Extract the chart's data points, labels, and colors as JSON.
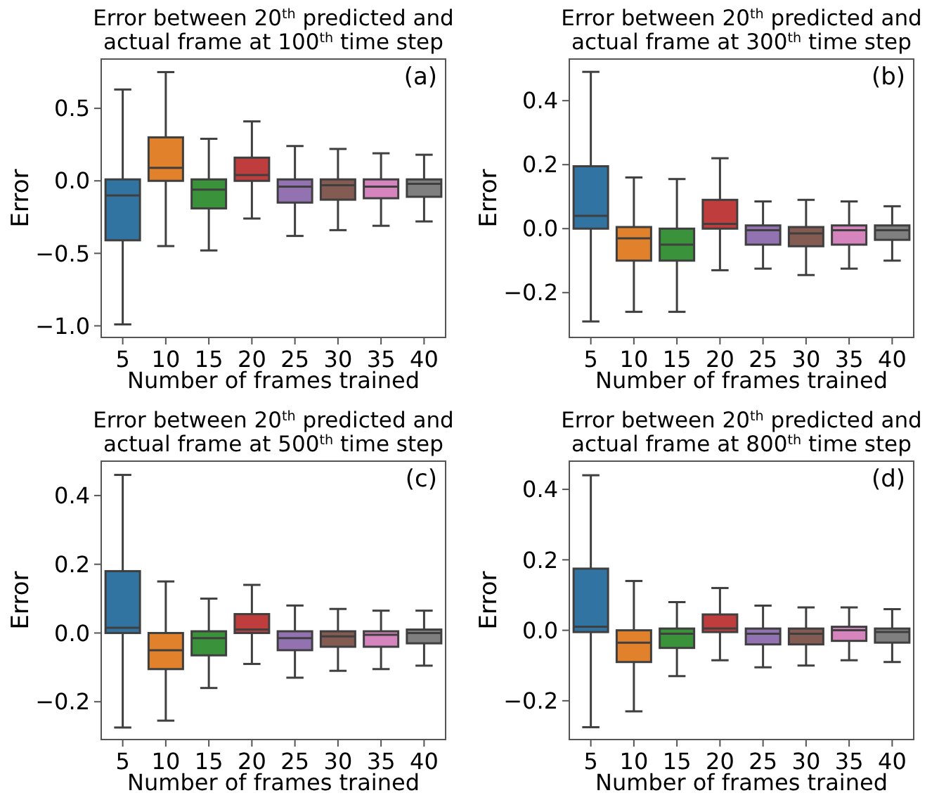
{
  "chart_data": [
    {
      "type": "box",
      "title": "Error between 20$^{th}$ predicted and\nactual frame at 100$^{th}$ time step",
      "xlabel": "Number of frames trained",
      "ylabel": "Error",
      "annotations": [
        "(a)"
      ],
      "categories": [
        "5",
        "10",
        "15",
        "20",
        "25",
        "30",
        "35",
        "40"
      ],
      "colors": [
        "#3274a1",
        "#e1812c",
        "#3a923a",
        "#c03d3e",
        "#9372b2",
        "#845b53",
        "#d684bd",
        "#7f7f7f"
      ],
      "ylim": [
        -1.08,
        0.84
      ],
      "yticks": [
        {
          "value": -1.0,
          "label": "−1.0"
        },
        {
          "value": -0.5,
          "label": "−0.5"
        },
        {
          "value": 0.0,
          "label": "0.0"
        },
        {
          "value": 0.5,
          "label": "0.5"
        }
      ],
      "boxes": [
        {
          "low": -0.99,
          "q1": -0.41,
          "median": -0.1,
          "q3": 0.01,
          "high": 0.63
        },
        {
          "low": -0.45,
          "q1": 0.0,
          "median": 0.09,
          "q3": 0.3,
          "high": 0.75
        },
        {
          "low": -0.48,
          "q1": -0.19,
          "median": -0.06,
          "q3": 0.01,
          "high": 0.29
        },
        {
          "low": -0.26,
          "q1": 0.0,
          "median": 0.04,
          "q3": 0.16,
          "high": 0.41
        },
        {
          "low": -0.38,
          "q1": -0.15,
          "median": -0.04,
          "q3": 0.01,
          "high": 0.24
        },
        {
          "low": -0.34,
          "q1": -0.13,
          "median": -0.03,
          "q3": 0.01,
          "high": 0.22
        },
        {
          "low": -0.31,
          "q1": -0.12,
          "median": -0.04,
          "q3": 0.01,
          "high": 0.19
        },
        {
          "low": -0.28,
          "q1": -0.11,
          "median": -0.02,
          "q3": 0.01,
          "high": 0.18
        }
      ]
    },
    {
      "type": "box",
      "title": "Error between 20$^{th}$ predicted and\nactual frame at 300$^{th}$ time step",
      "xlabel": "Number of frames trained",
      "ylabel": "Error",
      "annotations": [
        "(b)"
      ],
      "categories": [
        "5",
        "10",
        "15",
        "20",
        "25",
        "30",
        "35",
        "40"
      ],
      "colors": [
        "#3274a1",
        "#e1812c",
        "#3a923a",
        "#c03d3e",
        "#9372b2",
        "#845b53",
        "#d684bd",
        "#7f7f7f"
      ],
      "ylim": [
        -0.34,
        0.53
      ],
      "yticks": [
        {
          "value": -0.2,
          "label": "−0.2"
        },
        {
          "value": 0.0,
          "label": "0.0"
        },
        {
          "value": 0.2,
          "label": "0.2"
        },
        {
          "value": 0.4,
          "label": "0.4"
        }
      ],
      "boxes": [
        {
          "low": -0.29,
          "q1": 0.0,
          "median": 0.04,
          "q3": 0.195,
          "high": 0.49
        },
        {
          "low": -0.26,
          "q1": -0.1,
          "median": -0.03,
          "q3": 0.005,
          "high": 0.16
        },
        {
          "low": -0.26,
          "q1": -0.1,
          "median": -0.05,
          "q3": 0.0,
          "high": 0.155
        },
        {
          "low": -0.13,
          "q1": 0.0,
          "median": 0.015,
          "q3": 0.09,
          "high": 0.22
        },
        {
          "low": -0.125,
          "q1": -0.05,
          "median": -0.005,
          "q3": 0.01,
          "high": 0.085
        },
        {
          "low": -0.145,
          "q1": -0.055,
          "median": -0.015,
          "q3": 0.005,
          "high": 0.09
        },
        {
          "low": -0.125,
          "q1": -0.05,
          "median": -0.005,
          "q3": 0.01,
          "high": 0.085
        },
        {
          "low": -0.1,
          "q1": -0.035,
          "median": -0.005,
          "q3": 0.01,
          "high": 0.07
        }
      ]
    },
    {
      "type": "box",
      "title": "Error between 20$^{th}$ predicted and\nactual frame at 500$^{th}$ time step",
      "xlabel": "Number of frames trained",
      "ylabel": "Error",
      "annotations": [
        "(c)"
      ],
      "categories": [
        "5",
        "10",
        "15",
        "20",
        "25",
        "30",
        "35",
        "40"
      ],
      "colors": [
        "#3274a1",
        "#e1812c",
        "#3a923a",
        "#c03d3e",
        "#9372b2",
        "#845b53",
        "#d684bd",
        "#7f7f7f"
      ],
      "ylim": [
        -0.31,
        0.5
      ],
      "yticks": [
        {
          "value": -0.2,
          "label": "−0.2"
        },
        {
          "value": 0.0,
          "label": "0.0"
        },
        {
          "value": 0.2,
          "label": "0.2"
        },
        {
          "value": 0.4,
          "label": "0.4"
        }
      ],
      "boxes": [
        {
          "low": -0.275,
          "q1": 0.0,
          "median": 0.015,
          "q3": 0.18,
          "high": 0.46
        },
        {
          "low": -0.255,
          "q1": -0.105,
          "median": -0.05,
          "q3": 0.0,
          "high": 0.15
        },
        {
          "low": -0.16,
          "q1": -0.065,
          "median": -0.015,
          "q3": 0.005,
          "high": 0.1
        },
        {
          "low": -0.09,
          "q1": 0.0,
          "median": 0.01,
          "q3": 0.055,
          "high": 0.14
        },
        {
          "low": -0.13,
          "q1": -0.05,
          "median": -0.015,
          "q3": 0.005,
          "high": 0.08
        },
        {
          "low": -0.11,
          "q1": -0.04,
          "median": -0.01,
          "q3": 0.005,
          "high": 0.07
        },
        {
          "low": -0.105,
          "q1": -0.04,
          "median": -0.005,
          "q3": 0.005,
          "high": 0.065
        },
        {
          "low": -0.095,
          "q1": -0.03,
          "median": 0.0,
          "q3": 0.01,
          "high": 0.065
        }
      ]
    },
    {
      "type": "box",
      "title": "Error between 20$^{th}$ predicted and\nactual frame at 800$^{th}$ time step",
      "xlabel": "Number of frames trained",
      "ylabel": "Error",
      "annotations": [
        "(d)"
      ],
      "categories": [
        "5",
        "10",
        "15",
        "20",
        "25",
        "30",
        "35",
        "40"
      ],
      "colors": [
        "#3274a1",
        "#e1812c",
        "#3a923a",
        "#c03d3e",
        "#9372b2",
        "#845b53",
        "#d684bd",
        "#7f7f7f"
      ],
      "ylim": [
        -0.31,
        0.48
      ],
      "yticks": [
        {
          "value": -0.2,
          "label": "−0.2"
        },
        {
          "value": 0.0,
          "label": "0.0"
        },
        {
          "value": 0.2,
          "label": "0.2"
        },
        {
          "value": 0.4,
          "label": "0.4"
        }
      ],
      "boxes": [
        {
          "low": -0.275,
          "q1": -0.005,
          "median": 0.01,
          "q3": 0.175,
          "high": 0.44
        },
        {
          "low": -0.23,
          "q1": -0.09,
          "median": -0.035,
          "q3": 0.0,
          "high": 0.14
        },
        {
          "low": -0.13,
          "q1": -0.05,
          "median": -0.01,
          "q3": 0.005,
          "high": 0.08
        },
        {
          "low": -0.085,
          "q1": -0.005,
          "median": 0.005,
          "q3": 0.045,
          "high": 0.12
        },
        {
          "low": -0.105,
          "q1": -0.04,
          "median": -0.01,
          "q3": 0.005,
          "high": 0.07
        },
        {
          "low": -0.1,
          "q1": -0.04,
          "median": -0.01,
          "q3": 0.005,
          "high": 0.065
        },
        {
          "low": -0.085,
          "q1": -0.03,
          "median": 0.0,
          "q3": 0.01,
          "high": 0.065
        },
        {
          "low": -0.09,
          "q1": -0.035,
          "median": -0.005,
          "q3": 0.005,
          "high": 0.06
        }
      ]
    }
  ]
}
